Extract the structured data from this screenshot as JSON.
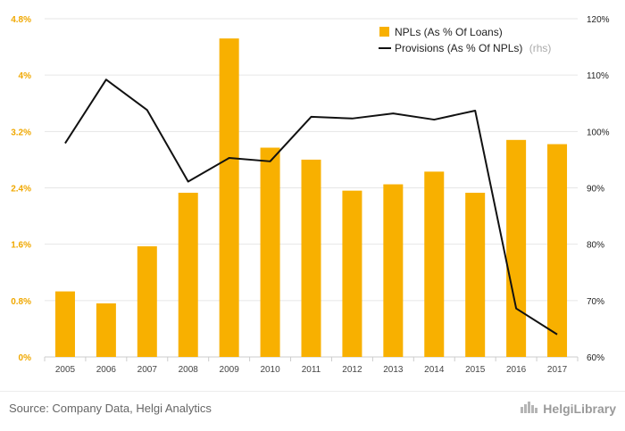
{
  "chart_data": {
    "type": "bar",
    "categories": [
      "2005",
      "2006",
      "2007",
      "2008",
      "2009",
      "2010",
      "2011",
      "2012",
      "2013",
      "2014",
      "2015",
      "2016",
      "2017"
    ],
    "series": [
      {
        "name": "NPLs (As % Of Loans)",
        "type": "bar",
        "axis": "left",
        "color": "#f8b000",
        "values": [
          0.93,
          0.76,
          1.57,
          2.33,
          4.52,
          2.97,
          2.8,
          2.36,
          2.45,
          2.63,
          2.33,
          3.08,
          3.02
        ]
      },
      {
        "name": "Provisions (As % Of NPLs)",
        "name_suffix": "(rhs)",
        "type": "line",
        "axis": "right",
        "color": "#111111",
        "values": [
          97.9,
          109.2,
          103.8,
          91.1,
          95.3,
          94.7,
          102.6,
          102.3,
          103.2,
          102.1,
          103.7,
          68.6,
          64.0
        ]
      }
    ],
    "left_axis": {
      "ylim": [
        0,
        4.8
      ],
      "ticks": [
        0,
        0.8,
        1.6,
        2.4,
        3.2,
        4,
        4.8
      ],
      "tick_labels": [
        "0%",
        "0.8%",
        "1.6%",
        "2.4%",
        "3.2%",
        "4%",
        "4.8%"
      ],
      "color": "#f0a800"
    },
    "right_axis": {
      "ylim": [
        60,
        120
      ],
      "ticks": [
        60,
        70,
        80,
        90,
        100,
        110,
        120
      ],
      "tick_labels": [
        "60%",
        "70%",
        "80%",
        "90%",
        "100%",
        "110%",
        "120%"
      ]
    },
    "grid": true,
    "legend_position": "top-right"
  },
  "footer": {
    "source": "Source: Company Data, Helgi Analytics",
    "brand": "HelgiLibrary"
  }
}
